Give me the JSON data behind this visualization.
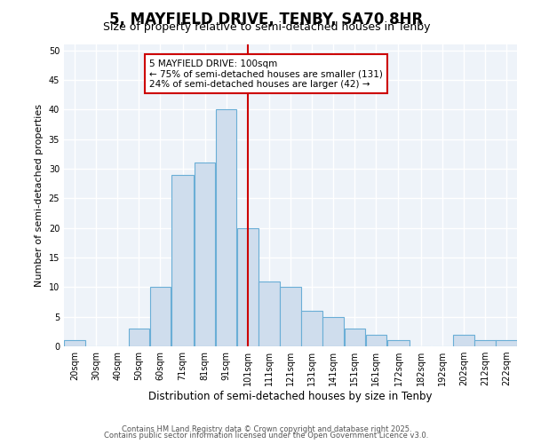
{
  "title": "5, MAYFIELD DRIVE, TENBY, SA70 8HR",
  "subtitle": "Size of property relative to semi-detached houses in Tenby",
  "xlabel": "Distribution of semi-detached houses by size in Tenby",
  "ylabel": "Number of semi-detached properties",
  "bin_labels": [
    "20sqm",
    "30sqm",
    "40sqm",
    "50sqm",
    "60sqm",
    "71sqm",
    "81sqm",
    "91sqm",
    "101sqm",
    "111sqm",
    "121sqm",
    "131sqm",
    "141sqm",
    "151sqm",
    "161sqm",
    "172sqm",
    "182sqm",
    "192sqm",
    "202sqm",
    "212sqm",
    "222sqm"
  ],
  "bin_edges": [
    15,
    25,
    35,
    45,
    55,
    65,
    76,
    86,
    96,
    106,
    116,
    126,
    136,
    146,
    156,
    166,
    177,
    187,
    197,
    207,
    217,
    227
  ],
  "counts": [
    1,
    0,
    0,
    3,
    10,
    29,
    31,
    40,
    20,
    11,
    10,
    6,
    5,
    3,
    2,
    1,
    0,
    0,
    2,
    1,
    1
  ],
  "bar_color": "#cfdded",
  "bar_edge_color": "#6aaed6",
  "property_line_x": 101,
  "property_line_color": "#cc0000",
  "annotation_title": "5 MAYFIELD DRIVE: 100sqm",
  "annotation_line1": "← 75% of semi-detached houses are smaller (131)",
  "annotation_line2": "24% of semi-detached houses are larger (42) →",
  "annotation_box_color": "#cc0000",
  "ylim": [
    0,
    51
  ],
  "yticks": [
    0,
    5,
    10,
    15,
    20,
    25,
    30,
    35,
    40,
    45,
    50
  ],
  "footer1": "Contains HM Land Registry data © Crown copyright and database right 2025.",
  "footer2": "Contains public sector information licensed under the Open Government Licence v3.0.",
  "bg_color": "#ffffff",
  "plot_bg_color": "#eef3f9",
  "title_fontsize": 12,
  "subtitle_fontsize": 9,
  "xlabel_fontsize": 8.5,
  "ylabel_fontsize": 8,
  "tick_fontsize": 7,
  "footer_fontsize": 6,
  "annotation_fontsize": 7.5
}
